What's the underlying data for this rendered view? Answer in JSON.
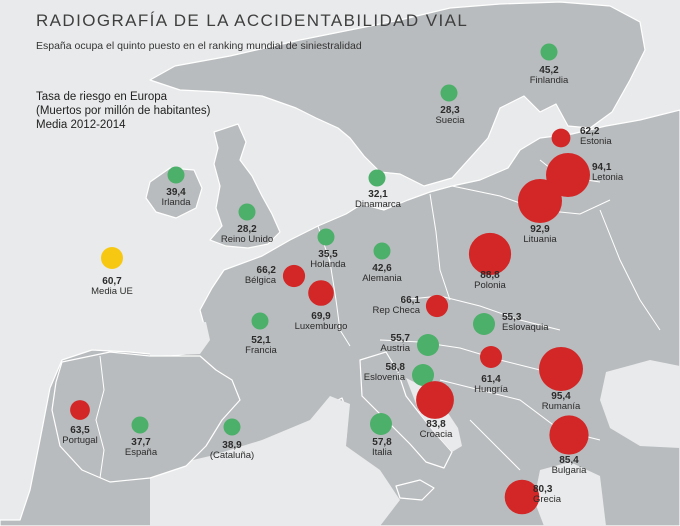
{
  "title": "RADIOGRAFÍA DE LA ACCIDENTABILIDAD VIAL",
  "subtitle": "España ocupa el quinto puesto en el ranking mundial de siniestralidad",
  "legend": {
    "line1": "Tasa de riesgo en Europa",
    "line2": "(Muertos por millón de habitantes)",
    "line3": "Media 2012-2014"
  },
  "colors": {
    "low": "#4caf6a",
    "high": "#d32626",
    "average": "#f7c812",
    "land": "#b9bcbe",
    "sea": "#e9eaeb"
  },
  "markers": [
    {
      "name": "Finlandia",
      "value": "45,2",
      "level": "low"
    },
    {
      "name": "Suecia",
      "value": "28,3",
      "level": "low"
    },
    {
      "name": "Estonia",
      "value": "62,2",
      "level": "high"
    },
    {
      "name": "Letonia",
      "value": "94,1",
      "level": "high"
    },
    {
      "name": "Lituania",
      "value": "92,9",
      "level": "high"
    },
    {
      "name": "Irlanda",
      "value": "39,4",
      "level": "low"
    },
    {
      "name": "Dinamarca",
      "value": "32,1",
      "level": "low"
    },
    {
      "name": "Reino Unido",
      "value": "28,2",
      "level": "low"
    },
    {
      "name": "Holanda",
      "value": "35,5",
      "level": "low"
    },
    {
      "name": "Alemania",
      "value": "42,6",
      "level": "low"
    },
    {
      "name": "Polonia",
      "value": "88,8",
      "level": "high"
    },
    {
      "name": "Media UE",
      "value": "60,7",
      "level": "average"
    },
    {
      "name": "Bélgica",
      "value": "66,2",
      "level": "high"
    },
    {
      "name": "Luxemburgo",
      "value": "69,9",
      "level": "high"
    },
    {
      "name": "Rep Checa",
      "value": "66,1",
      "level": "high"
    },
    {
      "name": "Eslovaquia",
      "value": "55,3",
      "level": "low"
    },
    {
      "name": "Francia",
      "value": "52,1",
      "level": "low"
    },
    {
      "name": "Austria",
      "value": "55,7",
      "level": "low"
    },
    {
      "name": "Eslovenia",
      "value": "58,8",
      "level": "low"
    },
    {
      "name": "Hungría",
      "value": "61,4",
      "level": "high"
    },
    {
      "name": "Rumanía",
      "value": "95,4",
      "level": "high"
    },
    {
      "name": "Portugal",
      "value": "63,5",
      "level": "high"
    },
    {
      "name": "España",
      "value": "37,7",
      "level": "low"
    },
    {
      "name": "(Cataluña)",
      "value": "38,9",
      "level": "low"
    },
    {
      "name": "Italia",
      "value": "57,8",
      "level": "low"
    },
    {
      "name": "Croacia",
      "value": "83,8",
      "level": "high"
    },
    {
      "name": "Bulgaria",
      "value": "85,4",
      "level": "high"
    },
    {
      "name": "Grecia",
      "value": "80,3",
      "level": "high"
    }
  ]
}
